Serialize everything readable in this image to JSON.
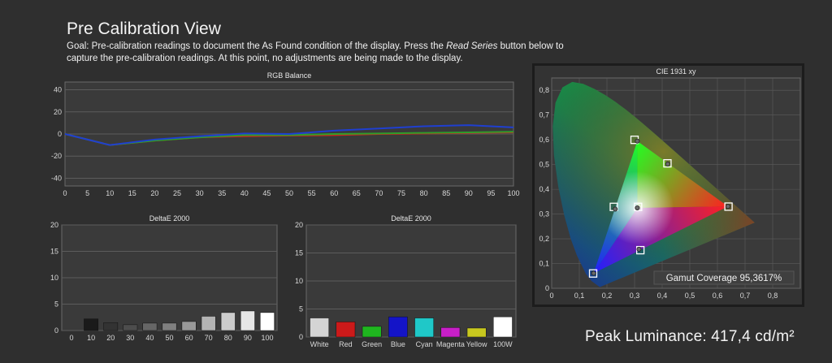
{
  "header": {
    "title": "Pre Calibration View",
    "goal_before": "Goal: Pre-calibration readings to document the As Found condition of the display. Press the ",
    "goal_emph": "Read Series",
    "goal_after": " button below to capture the pre-calibration readings. At this point, no adjustments are being made to the display."
  },
  "peak": "Peak Luminance: 417,4 cd/m²",
  "colors": {
    "bg": "#2f2f2f",
    "plot_bg": "#3a3a3a",
    "grid": "#5c5c5c",
    "red": "#c8281e",
    "green": "#2e9d2a",
    "blue": "#1f3fd0"
  },
  "chart_data": [
    {
      "type": "line",
      "title": "RGB Balance",
      "x": [
        0,
        10,
        20,
        30,
        40,
        50,
        60,
        70,
        80,
        90,
        100
      ],
      "xticks": [
        0,
        5,
        10,
        15,
        20,
        25,
        30,
        35,
        40,
        45,
        50,
        55,
        60,
        65,
        70,
        75,
        80,
        85,
        90,
        95,
        100
      ],
      "yticks": [
        40,
        20,
        0,
        -20,
        -40
      ],
      "xlim": [
        0,
        100
      ],
      "ylim": [
        -47,
        47
      ],
      "series": [
        {
          "color": "#c8281e",
          "values": [
            0,
            -10,
            -6,
            -3,
            -2,
            -1.5,
            -1,
            0,
            0.5,
            1,
            1.5
          ]
        },
        {
          "color": "#2e9d2a",
          "values": [
            0,
            -10,
            -6,
            -3,
            -1,
            -1,
            0,
            0.5,
            1,
            1.5,
            2
          ]
        },
        {
          "color": "#1f3fd0",
          "values": [
            0,
            -10,
            -5,
            -2,
            0.5,
            0,
            3,
            5,
            7,
            8,
            6
          ]
        }
      ]
    },
    {
      "type": "bar",
      "title": "DeltaE 2000",
      "categories": [
        "0",
        "10",
        "20",
        "30",
        "40",
        "50",
        "60",
        "70",
        "80",
        "90",
        "100"
      ],
      "values": [
        0,
        2.2,
        1.5,
        1.1,
        1.4,
        1.4,
        1.7,
        2.7,
        3.4,
        3.7,
        3.4
      ],
      "colors": [
        "#000000",
        "#1a1a1a",
        "#333333",
        "#4d4d4d",
        "#666666",
        "#808080",
        "#999999",
        "#b3b3b3",
        "#cccccc",
        "#e6e6e6",
        "#ffffff"
      ],
      "yticks": [
        0,
        5,
        10,
        15,
        20
      ],
      "ylim": [
        0,
        20
      ]
    },
    {
      "type": "bar",
      "title": "DeltaE 2000",
      "categories": [
        "White",
        "Red",
        "Green",
        "Blue",
        "Cyan",
        "Magenta",
        "Yellow",
        "100W"
      ],
      "values": [
        3.4,
        2.7,
        1.9,
        3.6,
        3.4,
        1.7,
        1.6,
        3.6
      ],
      "colors": [
        "#d4d4d4",
        "#cc1a1a",
        "#1fb51f",
        "#1414c8",
        "#1fc8c8",
        "#c81fc8",
        "#c8c81f",
        "#ffffff"
      ],
      "yticks": [
        0,
        5,
        10,
        15,
        20
      ],
      "ylim": [
        0,
        20
      ]
    },
    {
      "type": "scatter",
      "title": "CIE 1931 xy",
      "xticks": [
        "0",
        "0,1",
        "0,2",
        "0,3",
        "0,4",
        "0,5",
        "0,6",
        "0,7",
        "0,8"
      ],
      "yticks": [
        "0",
        "0,1",
        "0,2",
        "0,3",
        "0,4",
        "0,5",
        "0,6",
        "0,7",
        "0,8"
      ],
      "xlim": [
        0,
        0.9
      ],
      "ylim": [
        0,
        0.85
      ],
      "targets": [
        [
          0.64,
          0.33
        ],
        [
          0.3,
          0.6
        ],
        [
          0.15,
          0.06
        ],
        [
          0.225,
          0.329
        ],
        [
          0.321,
          0.154
        ],
        [
          0.419,
          0.505
        ],
        [
          0.3127,
          0.329
        ]
      ],
      "measured": [
        [
          0.638,
          0.331
        ],
        [
          0.31,
          0.595
        ],
        [
          0.152,
          0.061
        ],
        [
          0.23,
          0.32
        ],
        [
          0.316,
          0.158
        ],
        [
          0.42,
          0.502
        ],
        [
          0.31,
          0.325
        ]
      ],
      "gamut_coverage": "Gamut Coverage 95,3617%"
    }
  ]
}
